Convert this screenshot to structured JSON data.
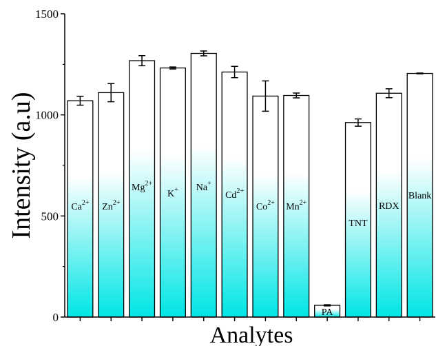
{
  "chart_data": {
    "type": "bar",
    "title": "",
    "xlabel": "Analytes",
    "ylabel": "Intensity (a.u)",
    "ylim": [
      0,
      1500
    ],
    "yticks": [
      0,
      500,
      1000,
      1500
    ],
    "grid": false,
    "colors": {
      "gradient_top": "#ffffff",
      "gradient_bottom": "#00e5e5",
      "stroke": "#000000"
    },
    "bars": [
      {
        "base": "Ca",
        "sup": "2+",
        "value": 1070,
        "error": 22
      },
      {
        "base": "Zn",
        "sup": "2+",
        "value": 1110,
        "error": 45
      },
      {
        "base": "Mg",
        "sup": "2+",
        "value": 1268,
        "error": 25
      },
      {
        "base": "K",
        "sup": "+",
        "value": 1232,
        "error": 5
      },
      {
        "base": "Na",
        "sup": "+",
        "value": 1304,
        "error": 12
      },
      {
        "base": "Cd",
        "sup": "2+",
        "value": 1212,
        "error": 28
      },
      {
        "base": "Co",
        "sup": "2+",
        "value": 1093,
        "error": 75
      },
      {
        "base": "Mn",
        "sup": "2+",
        "value": 1096,
        "error": 12
      },
      {
        "base": "PA",
        "sup": "",
        "value": 58,
        "error": 3
      },
      {
        "base": "TNT",
        "sup": "",
        "value": 962,
        "error": 18
      },
      {
        "base": "RDX",
        "sup": "",
        "value": 1107,
        "error": 22
      },
      {
        "base": "Blank",
        "sup": "",
        "value": 1205,
        "error": 2
      }
    ]
  }
}
